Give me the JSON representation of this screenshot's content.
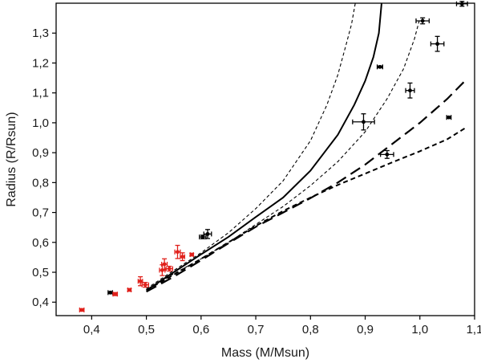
{
  "chart_data": {
    "type": "scatter",
    "title": "",
    "xlabel": "Mass (M/Msun)",
    "ylabel": "Radius (R/Rsun)",
    "xlim": [
      0.335,
      1.1
    ],
    "ylim": [
      0.355,
      1.4
    ],
    "xticks": [
      "0,4",
      "0,5",
      "0,6",
      "0,7",
      "0,8",
      "0,9",
      "1,0",
      "1,1"
    ],
    "xtick_values": [
      0.4,
      0.5,
      0.6,
      0.7,
      0.8,
      0.9,
      1.0,
      1.1
    ],
    "yticks": [
      "0,4",
      "0,5",
      "0,6",
      "0,7",
      "0,8",
      "0,9",
      "1,0",
      "1,1",
      "1,2",
      "1,3"
    ],
    "ytick_values": [
      0.4,
      0.5,
      0.6,
      0.7,
      0.8,
      0.9,
      1.0,
      1.1,
      1.2,
      1.3
    ],
    "series": [
      {
        "name": "black-points",
        "color": "#000000",
        "points": [
          {
            "x": 0.434,
            "y": 0.432,
            "xerr": 0.004,
            "yerr": 0.003
          },
          {
            "x": 0.603,
            "y": 0.618,
            "xerr": 0.006,
            "yerr": 0.006
          },
          {
            "x": 0.612,
            "y": 0.628,
            "xerr": 0.007,
            "yerr": 0.015
          },
          {
            "x": 0.897,
            "y": 1.003,
            "xerr": 0.02,
            "yerr": 0.027
          },
          {
            "x": 0.927,
            "y": 1.187,
            "xerr": 0.005,
            "yerr": 0.003
          },
          {
            "x": 0.94,
            "y": 0.894,
            "xerr": 0.012,
            "yerr": 0.013
          },
          {
            "x": 0.982,
            "y": 1.108,
            "xerr": 0.008,
            "yerr": 0.025
          },
          {
            "x": 1.005,
            "y": 1.341,
            "xerr": 0.012,
            "yerr": 0.01
          },
          {
            "x": 1.032,
            "y": 1.264,
            "xerr": 0.012,
            "yerr": 0.025
          },
          {
            "x": 1.053,
            "y": 1.018,
            "xerr": 0.004,
            "yerr": 0.003
          },
          {
            "x": 1.077,
            "y": 1.398,
            "xerr": 0.01,
            "yerr": 0.008
          }
        ]
      },
      {
        "name": "red-points",
        "color": "#e0201b",
        "points": [
          {
            "x": 0.382,
            "y": 0.374,
            "xerr": 0.004,
            "yerr": 0.004
          },
          {
            "x": 0.443,
            "y": 0.427,
            "xerr": 0.004,
            "yerr": 0.005
          },
          {
            "x": 0.469,
            "y": 0.441,
            "xerr": 0.003,
            "yerr": 0.004
          },
          {
            "x": 0.489,
            "y": 0.47,
            "xerr": 0.004,
            "yerr": 0.015
          },
          {
            "x": 0.498,
            "y": 0.458,
            "xerr": 0.006,
            "yerr": 0.008
          },
          {
            "x": 0.529,
            "y": 0.507,
            "xerr": 0.005,
            "yerr": 0.018
          },
          {
            "x": 0.533,
            "y": 0.527,
            "xerr": 0.005,
            "yerr": 0.018
          },
          {
            "x": 0.542,
            "y": 0.512,
            "xerr": 0.006,
            "yerr": 0.008
          },
          {
            "x": 0.557,
            "y": 0.568,
            "xerr": 0.005,
            "yerr": 0.022
          },
          {
            "x": 0.566,
            "y": 0.552,
            "xerr": 0.004,
            "yerr": 0.013
          },
          {
            "x": 0.583,
            "y": 0.559,
            "xerr": 0.003,
            "yerr": 0.004
          }
        ]
      }
    ],
    "curves": [
      {
        "name": "short-dash-thin",
        "style": "dotted",
        "x": [
          0.5,
          0.55,
          0.6,
          0.65,
          0.7,
          0.75,
          0.8,
          0.83,
          0.85,
          0.865,
          0.875,
          0.882
        ],
        "y": [
          0.445,
          0.506,
          0.565,
          0.632,
          0.713,
          0.806,
          0.94,
          1.06,
          1.16,
          1.26,
          1.33,
          1.4
        ]
      },
      {
        "name": "solid",
        "style": "solid",
        "x": [
          0.5,
          0.55,
          0.6,
          0.65,
          0.7,
          0.75,
          0.8,
          0.85,
          0.88,
          0.9,
          0.915,
          0.925,
          0.93
        ],
        "y": [
          0.44,
          0.5,
          0.56,
          0.618,
          0.685,
          0.75,
          0.84,
          0.96,
          1.06,
          1.14,
          1.22,
          1.3,
          1.4
        ]
      },
      {
        "name": "short-dash-thin-2",
        "style": "dotted",
        "x": [
          0.5,
          0.55,
          0.6,
          0.65,
          0.7,
          0.75,
          0.8,
          0.85,
          0.9,
          0.94,
          0.97,
          0.99,
          1.0
        ],
        "y": [
          0.44,
          0.495,
          0.545,
          0.6,
          0.66,
          0.72,
          0.79,
          0.87,
          0.97,
          1.08,
          1.18,
          1.28,
          1.35
        ]
      },
      {
        "name": "long-dash",
        "style": "long-dash",
        "x": [
          0.5,
          0.55,
          0.6,
          0.65,
          0.7,
          0.75,
          0.8,
          0.85,
          0.9,
          0.95,
          1.0,
          1.05,
          1.085
        ],
        "y": [
          0.435,
          0.485,
          0.54,
          0.597,
          0.652,
          0.7,
          0.748,
          0.8,
          0.86,
          0.93,
          1.0,
          1.08,
          1.145
        ]
      },
      {
        "name": "short-dash-thick",
        "style": "medium-dash",
        "x": [
          0.5,
          0.55,
          0.6,
          0.65,
          0.7,
          0.75,
          0.8,
          0.85,
          0.9,
          0.95,
          1.0,
          1.05,
          1.085
        ],
        "y": [
          0.44,
          0.492,
          0.545,
          0.6,
          0.655,
          0.705,
          0.75,
          0.792,
          0.83,
          0.868,
          0.905,
          0.945,
          0.985
        ]
      }
    ]
  }
}
